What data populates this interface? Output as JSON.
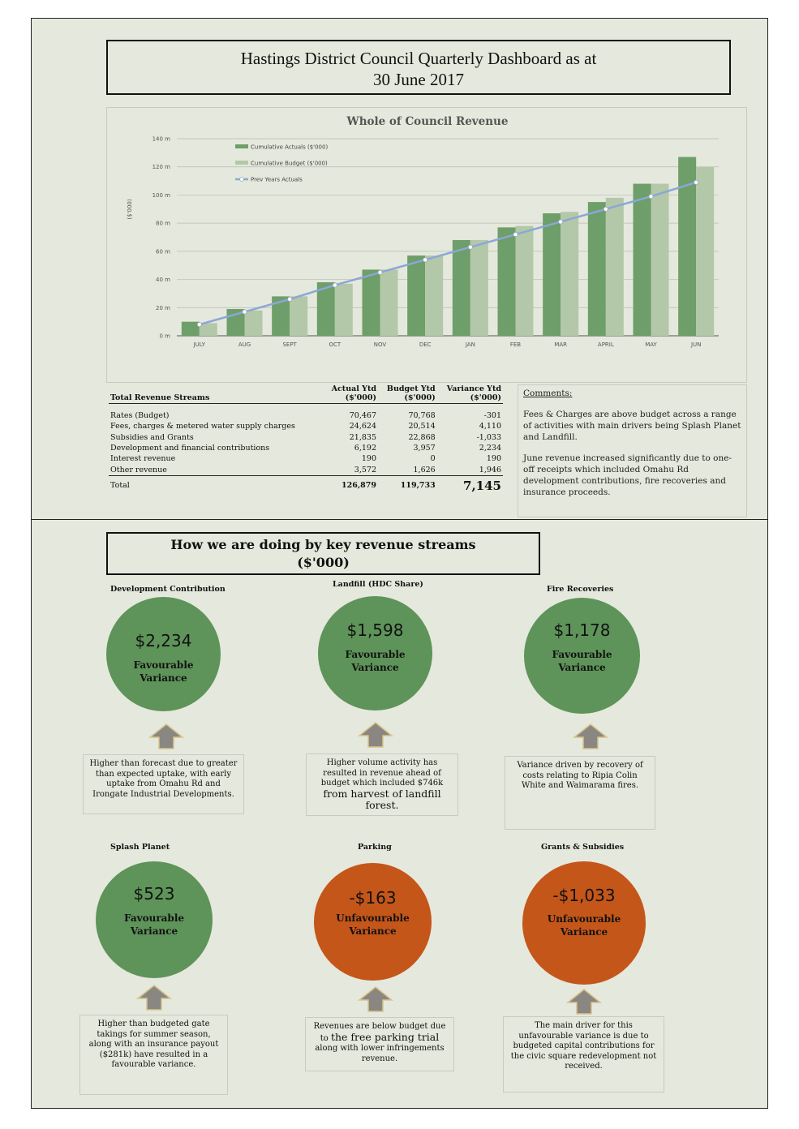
{
  "title": {
    "line1": "Hastings District Council Quarterly Dashboard as at",
    "line2": "30 June 2017"
  },
  "chart_data": {
    "type": "bar",
    "title": "Whole of Council Revenue",
    "ylabel": "($'000)",
    "xlabel": "",
    "categories": [
      "JULY",
      "AUG",
      "SEPT",
      "OCT",
      "NOV",
      "DEC",
      "JAN",
      "FEB",
      "MAR",
      "APRIL",
      "MAY",
      "JUN"
    ],
    "ylim": [
      0,
      140
    ],
    "yticks": [
      "0 m",
      "20 m",
      "40 m",
      "60 m",
      "80 m",
      "100 m",
      "120 m",
      "140 m"
    ],
    "series": [
      {
        "name": "Cumulative Actuals ($'000)",
        "kind": "bar",
        "color": "#6e9e69",
        "values": [
          10,
          19,
          28,
          38,
          47,
          57,
          68,
          77,
          87,
          95,
          108,
          127
        ]
      },
      {
        "name": "Cumulative Budget ($'000)",
        "kind": "bar",
        "color": "#b3c8a8",
        "values": [
          9,
          18,
          28,
          37,
          47,
          57,
          68,
          78,
          88,
          98,
          108,
          120
        ]
      },
      {
        "name": "Prev Years Actuals",
        "kind": "line",
        "color": "#8aa7d8",
        "values": [
          8,
          17,
          26,
          36,
          45,
          54,
          63,
          72,
          81,
          90,
          99,
          109
        ]
      }
    ],
    "legend_position": "top-left",
    "grid": true
  },
  "revenue_table": {
    "headers": {
      "label": "Total Revenue Streams",
      "actual": [
        "Actual Ytd",
        "($'000)"
      ],
      "budget": [
        "Budget Ytd",
        "($'000)"
      ],
      "variance": [
        "Variance Ytd",
        "($'000)"
      ]
    },
    "rows": [
      {
        "label": "Rates (Budget)",
        "actual": "70,467",
        "budget": "70,768",
        "variance": "-301"
      },
      {
        "label": "Fees, charges & metered water supply charges",
        "actual": "24,624",
        "budget": "20,514",
        "variance": "4,110"
      },
      {
        "label": "Subsidies and Grants",
        "actual": "21,835",
        "budget": "22,868",
        "variance": "-1,033"
      },
      {
        "label": "Development and financial contributions",
        "actual": "6,192",
        "budget": "3,957",
        "variance": "2,234"
      },
      {
        "label": "Interest revenue",
        "actual": "190",
        "budget": "0",
        "variance": "190"
      },
      {
        "label": "Other revenue",
        "actual": "3,572",
        "budget": "1,626",
        "variance": "1,946"
      }
    ],
    "total": {
      "label": "Total",
      "actual": "126,879",
      "budget": "119,733",
      "variance": "7,145"
    }
  },
  "comments": {
    "heading": "Comments:",
    "p1": " Fees & Charges are above budget across a range of activities with main drivers being Splash Planet and Landfill.",
    "p2": "June revenue increased significantly due to one-off receipts which included Omahu Rd development contributions, fire recoveries and insurance proceeds."
  },
  "section": {
    "line1": "How we are doing by key revenue streams",
    "line2": "($'000)"
  },
  "streams": [
    {
      "label": "Development Contribution",
      "amount": "$2,234",
      "status_line1": "Favourable",
      "status_line2": "Variance",
      "color": "#5e9459",
      "note": "Higher than forecast due to greater than expected uptake, with early uptake from Omahu Rd and Irongate Industrial Developments."
    },
    {
      "label": "Landfill (HDC Share)",
      "amount": "$1,598",
      "status_line1": "Favourable",
      "status_line2": "Variance",
      "color": "#5e9459",
      "note_a": "Higher volume activity has resulted in revenue ahead of budget which included $746k ",
      "note_b": "from ",
      "note_c": "harvest of landfill forest",
      "note_d": "."
    },
    {
      "label": "Fire Recoveries",
      "amount": "$1,178",
      "status_line1": "Favourable",
      "status_line2": "Variance",
      "color": "#5e9459",
      "note": "Variance driven by recovery of costs relating to Ripia Colin White and Waimarama fires."
    },
    {
      "label": "Splash Planet",
      "amount": "$523",
      "status_line1": "Favourable",
      "status_line2": "Variance",
      "color": "#5e9459",
      "note": "Higher than budgeted gate takings for summer season, along with an insurance payout ($281k) have resulted in a favourable variance."
    },
    {
      "label": "Parking",
      "amount": "-$163",
      "status_line1": "Unfavourable",
      "status_line2": "Variance",
      "color": "#c4561a",
      "note_a": "Revenues are below budget  due ",
      "note_b": "to ",
      "note_c": "the free parking trial",
      "note_d": " along with lower infringements revenue."
    },
    {
      "label": "Grants & Subsidies",
      "amount": "-$1,033",
      "status_line1": "Unfavourable",
      "status_line2": "Variance",
      "color": "#c4561a",
      "note": "The main driver for this unfavourable variance is  due to budgeted capital contributions for the civic square redevelopment not received."
    }
  ]
}
